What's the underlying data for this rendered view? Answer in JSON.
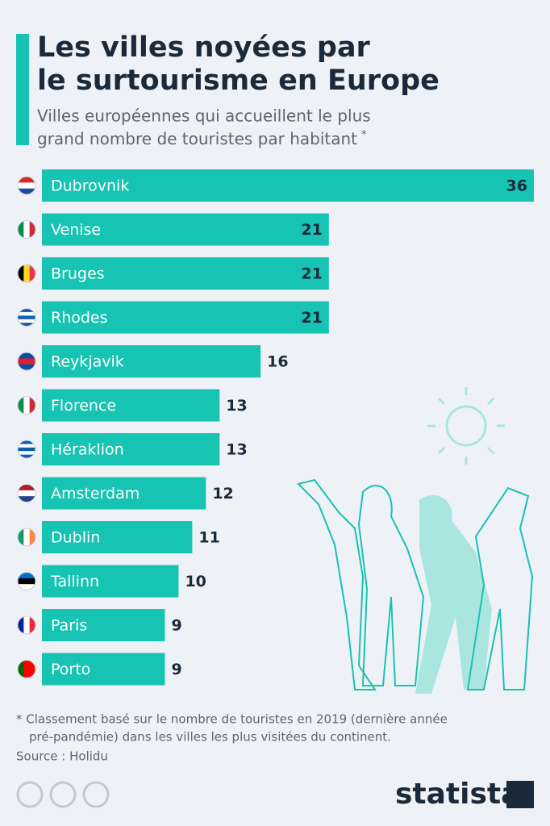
{
  "chart_data": {
    "type": "bar",
    "orientation": "horizontal",
    "title": [
      "Les villes noyées par",
      "le surtourisme en Europe"
    ],
    "subtitle": [
      "Villes européennes qui accueillent le plus",
      "grand nombre de touristes par habitant"
    ],
    "subtitle_mark": "*",
    "categories": [
      "Dubrovnik",
      "Venise",
      "Bruges",
      "Rhodes",
      "Reykjavik",
      "Florence",
      "Héraklion",
      "Amsterdam",
      "Dublin",
      "Tallinn",
      "Paris",
      "Porto"
    ],
    "values": [
      36,
      21,
      21,
      21,
      16,
      13,
      13,
      12,
      11,
      10,
      9,
      9
    ],
    "color": "#17c3b2",
    "xlim": [
      0,
      36
    ],
    "footnote": [
      "* Classement basé sur le nombre de touristes en 2019 (dernière année",
      "pré-pandémie) dans les villes les plus visitées du continent."
    ],
    "source": "Source : Holidu",
    "brand": "statista"
  }
}
